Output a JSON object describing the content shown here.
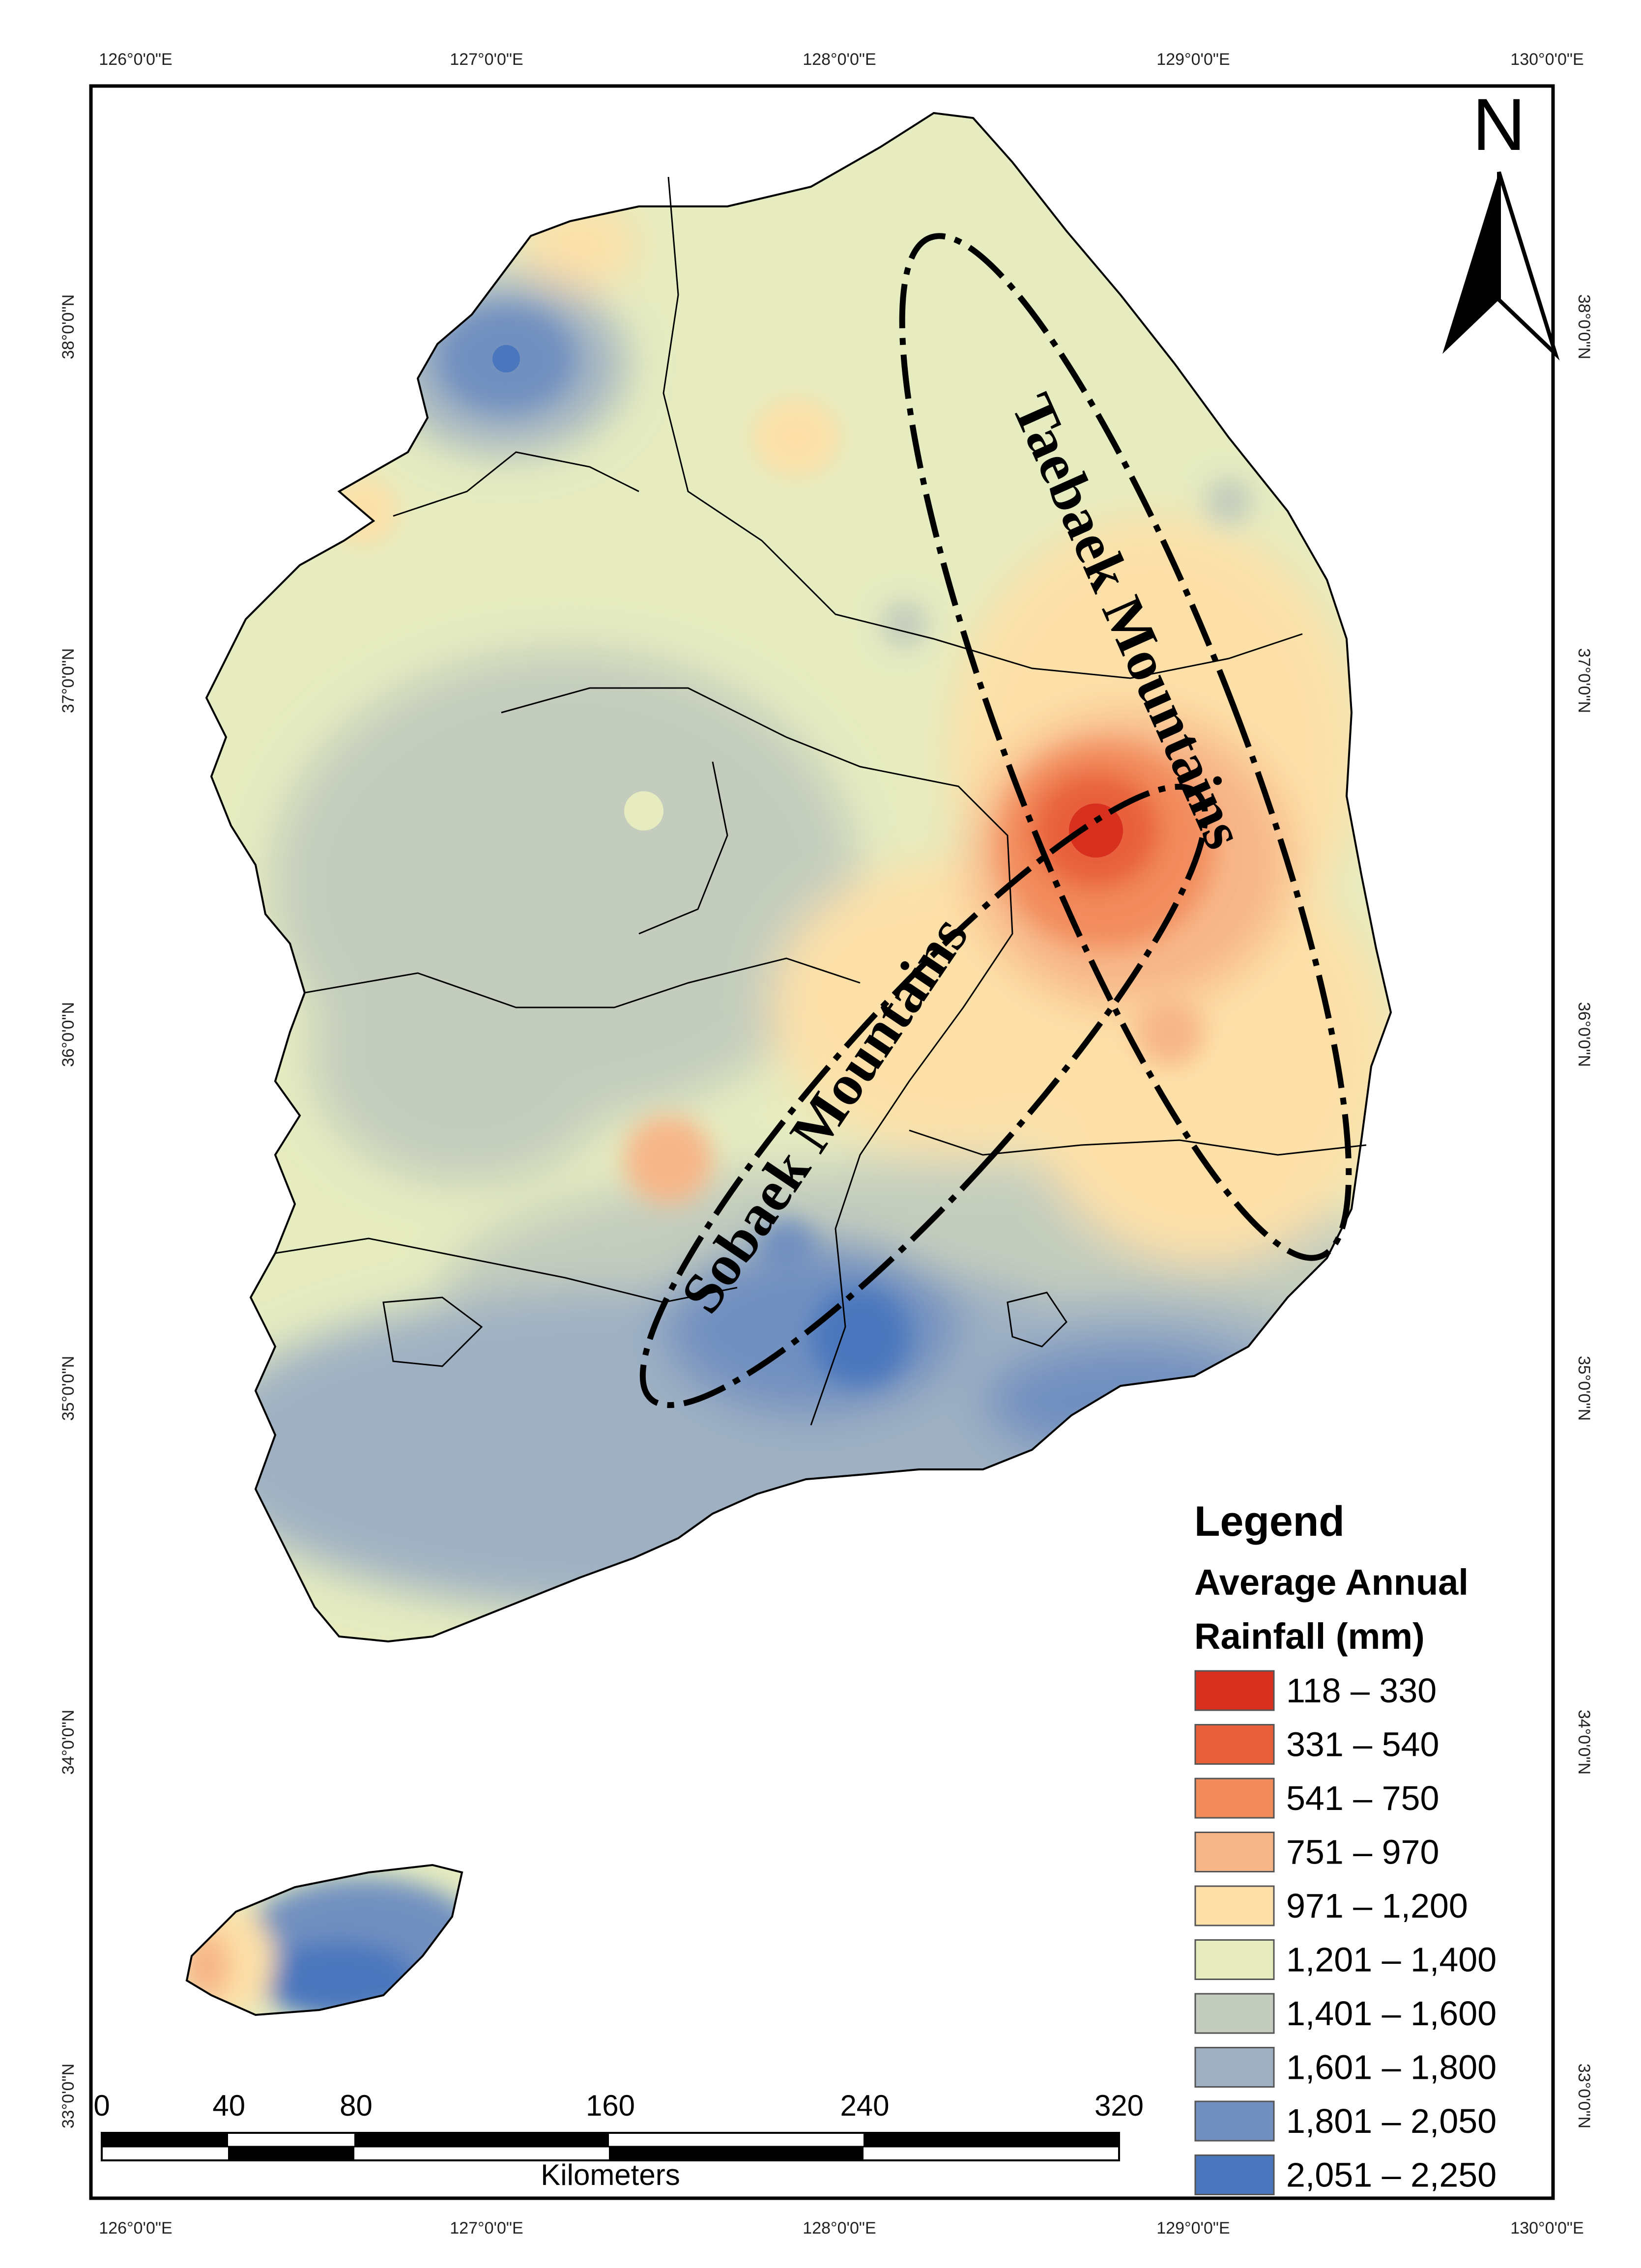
{
  "graticule": {
    "lon_labels": [
      "126°0'0\"E",
      "127°0'0\"E",
      "128°0'0\"E",
      "129°0'0\"E",
      "130°0'0\"E"
    ],
    "lat_labels": [
      "38°0'0\"N",
      "37°0'0\"N",
      "36°0'0\"N",
      "35°0'0\"N",
      "34°0'0\"N",
      "33°0'0\"N"
    ]
  },
  "annotations": {
    "taebaek": "Taebaek Mountains",
    "sobaek": "Sobaek Mountains"
  },
  "north_arrow": {
    "label": "N",
    "icon": "north-arrow-icon"
  },
  "legend": {
    "title": "Legend",
    "subtitle_line1": "Average Annual",
    "subtitle_line2": "Rainfall (mm)",
    "classes": [
      {
        "label": "118 – 330",
        "color": "#d7301f"
      },
      {
        "label": "331 – 540",
        "color": "#e8603a"
      },
      {
        "label": "541 – 750",
        "color": "#f28b5b"
      },
      {
        "label": "751 – 970",
        "color": "#f7b688"
      },
      {
        "label": "971 – 1,200",
        "color": "#fde0a8"
      },
      {
        "label": "1,201 – 1,400",
        "color": "#e6ecc0"
      },
      {
        "label": "1,401 – 1,600",
        "color": "#c4cdbd"
      },
      {
        "label": "1,601 – 1,800",
        "color": "#9fb0c2"
      },
      {
        "label": "1,801 – 2,050",
        "color": "#7190c0"
      },
      {
        "label": "2,051 – 2,250",
        "color": "#4a76bd"
      }
    ]
  },
  "scale_bar": {
    "ticks": [
      "0",
      "40",
      "80",
      "160",
      "240",
      "320"
    ],
    "unit": "Kilometers"
  }
}
